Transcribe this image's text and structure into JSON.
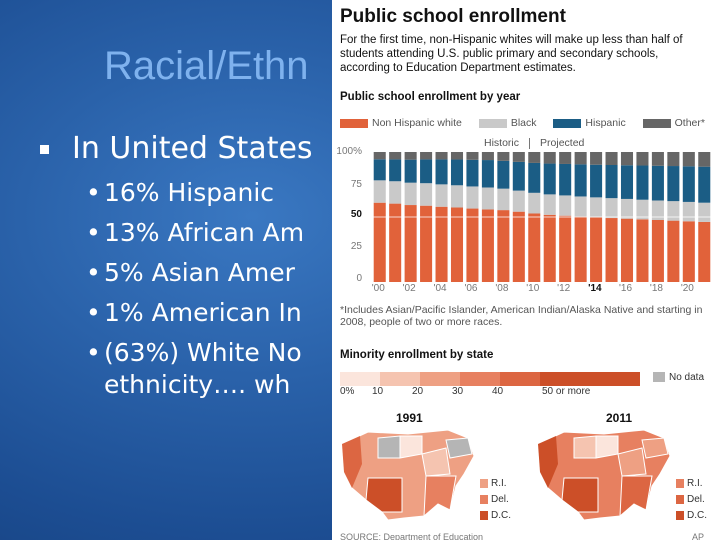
{
  "slide": {
    "title": "Racial/Ethn",
    "main_bullet": "In United States",
    "sub_bullets": [
      "16% Hispanic",
      "13% African Am",
      "5% Asian Amer",
      "1% American In",
      "(63%) White No"
    ],
    "continuation": "ethnicity….   wh"
  },
  "infographic": {
    "title": "Public school enrollment",
    "subtitle": "For the first time, non-Hispanic whites will make up less than half of students attending U.S. public primary and secondary schools, according to Education Department estimates.",
    "chart_heading": "Public school enrollment by year",
    "legend": [
      "Non Hispanic white",
      "Black",
      "Hispanic",
      "Other*"
    ],
    "colors": {
      "white": "#e1623a",
      "black": "#c9c9c9",
      "hispanic": "#1b5d85",
      "other": "#666666"
    },
    "historic_label": "Historic",
    "projected_label": "Projected",
    "footnote": "*Includes Asian/Pacific Islander, American Indian/Alaska Native and starting in 2008, people of two or more races.",
    "map_heading": "Minority enrollment by state",
    "scale_labels": [
      "0%",
      "10",
      "20",
      "30",
      "40",
      "50 or more"
    ],
    "no_data": "No data",
    "years": [
      "1991",
      "2011"
    ],
    "small_states": [
      "R.I.",
      "Del.",
      "D.C."
    ],
    "source": "SOURCE: Department of Education",
    "credit": "AP"
  },
  "chart_data": {
    "type": "bar",
    "stacked": true,
    "title": "Public school enrollment by year",
    "categories": [
      "2000",
      "2001",
      "2002",
      "2003",
      "2004",
      "2005",
      "2006",
      "2007",
      "2008",
      "2009",
      "2010",
      "2011",
      "2012",
      "2013",
      "2014",
      "2015",
      "2016",
      "2017",
      "2018",
      "2019",
      "2020",
      "2021"
    ],
    "x_tick_labels": [
      "'00",
      "'02",
      "'04",
      "'06",
      "'08",
      "'10",
      "'12",
      "'14",
      "'16",
      "'18",
      "'20"
    ],
    "y_tick_labels": [
      "100%",
      "75",
      "50",
      "25",
      "0"
    ],
    "ylim": [
      0,
      100
    ],
    "series": [
      {
        "name": "Non Hispanic white",
        "values": [
          61,
          60.3,
          59.2,
          58.7,
          57.9,
          57.3,
          56.5,
          55.8,
          55.3,
          54.1,
          52.7,
          51.7,
          51,
          50.3,
          49.7,
          49.2,
          48.7,
          48.2,
          47.7,
          47.2,
          46.7,
          46.2
        ]
      },
      {
        "name": "Black",
        "values": [
          17.2,
          17.2,
          17.2,
          17.3,
          17.2,
          17.1,
          17,
          16.9,
          16.5,
          16.2,
          15.9,
          15.7,
          15.6,
          15.5,
          15.4,
          15.3,
          15.2,
          15.1,
          15,
          15,
          14.9,
          14.8
        ]
      },
      {
        "name": "Hispanic",
        "values": [
          16.2,
          16.8,
          17.7,
          18.3,
          19.2,
          19.8,
          20.5,
          21.1,
          21.4,
          22.1,
          23,
          23.7,
          24.2,
          24.7,
          25.1,
          25.5,
          25.9,
          26.3,
          26.7,
          27,
          27.4,
          27.7
        ]
      },
      {
        "name": "Other*",
        "values": [
          5.6,
          5.7,
          5.9,
          5.7,
          5.7,
          5.8,
          6,
          6.2,
          6.8,
          7.6,
          8.4,
          8.9,
          9.2,
          9.5,
          9.8,
          10,
          10.2,
          10.4,
          10.6,
          10.8,
          11,
          11.3
        ]
      }
    ],
    "annotations": [
      "Historic",
      "Projected"
    ]
  }
}
